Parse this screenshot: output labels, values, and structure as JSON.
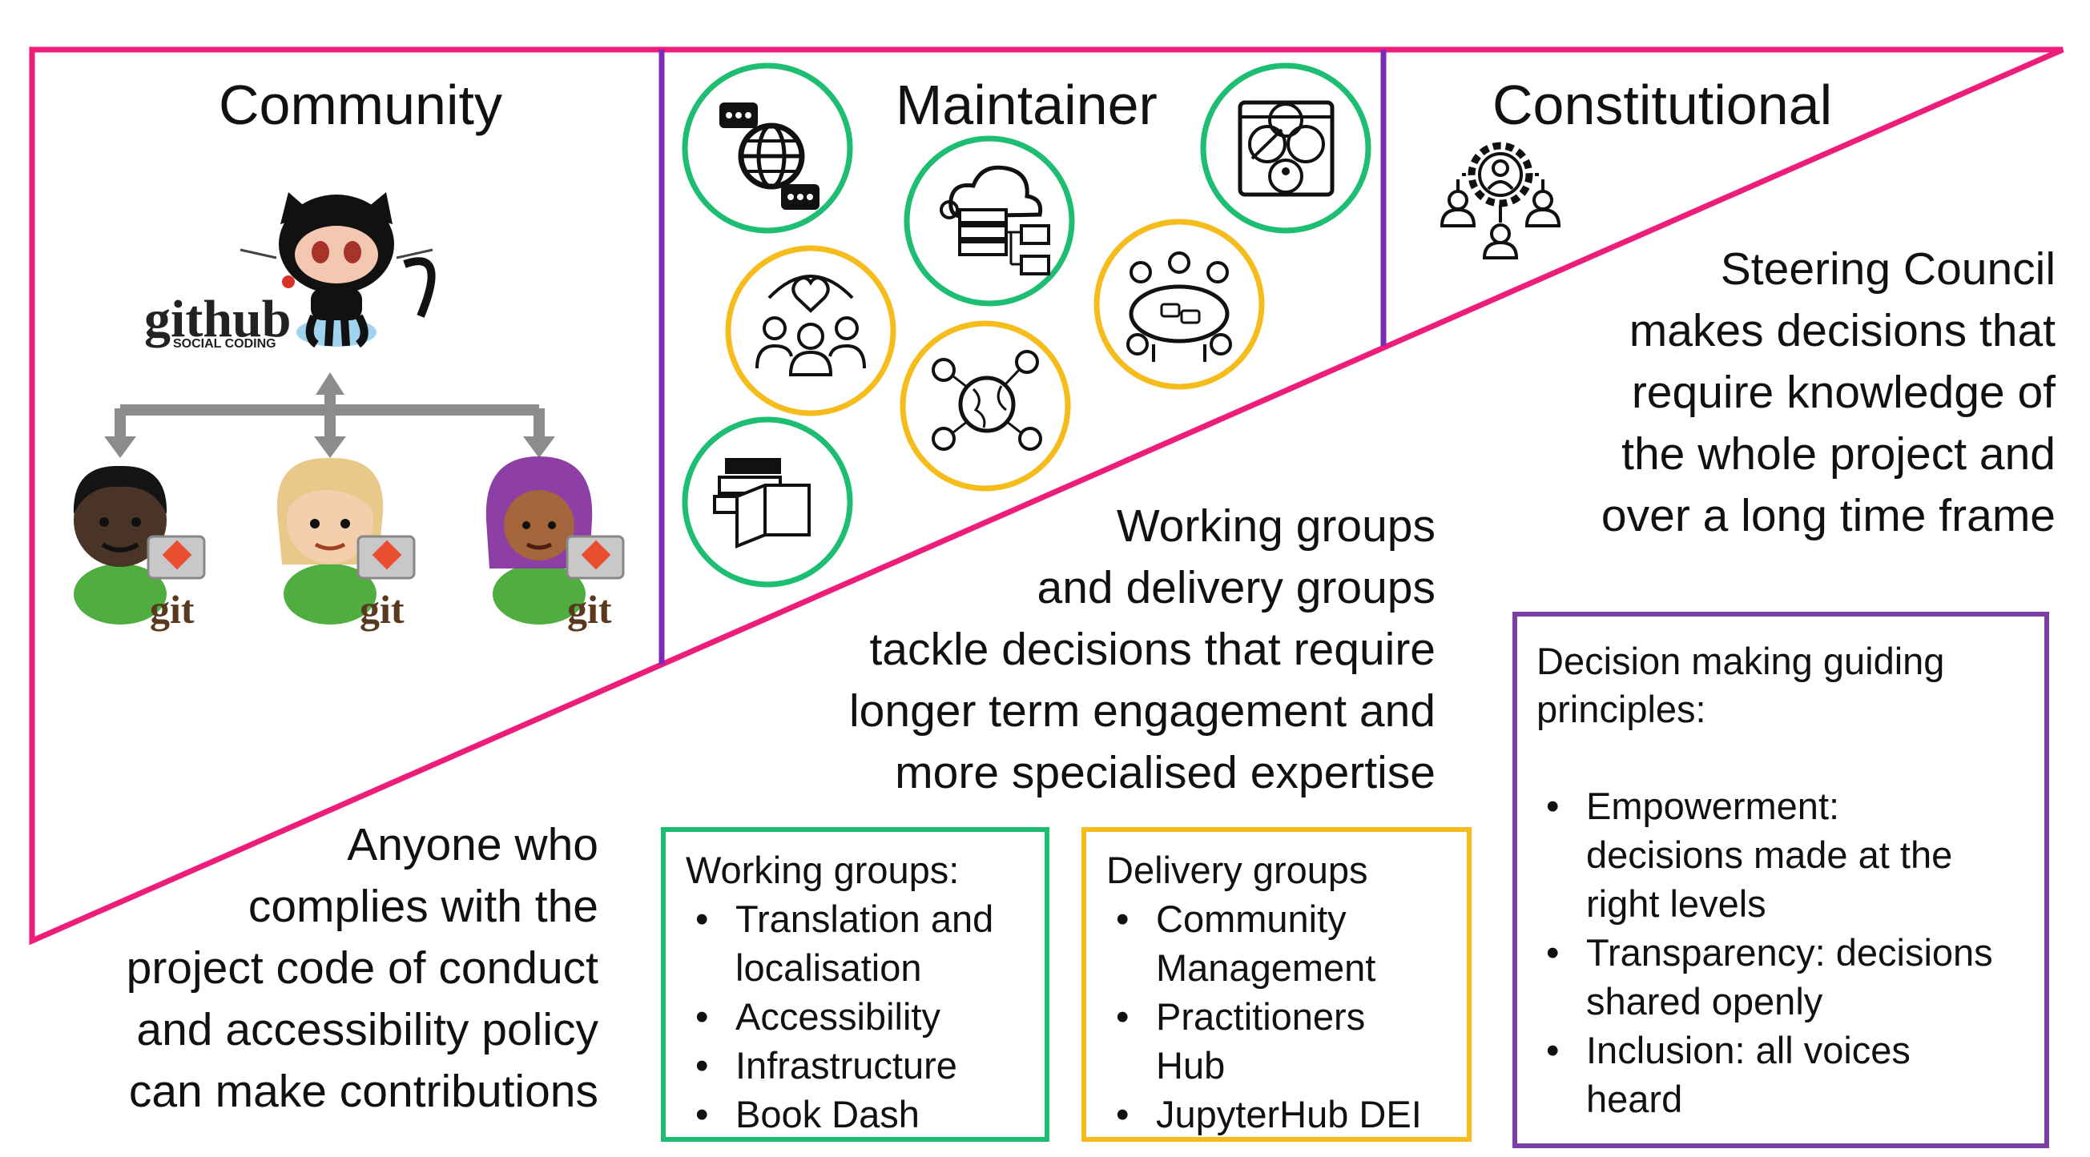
{
  "sections": {
    "community": {
      "title": "Community",
      "description_lines": [
        "Anyone who",
        "complies with the",
        "project code of conduct",
        "and accessibility policy",
        "can make contributions"
      ],
      "github_logo": {
        "word": "github",
        "tagline": "SOCIAL CODING"
      },
      "contributors": [
        {
          "name": "contributor-1",
          "badge": "git"
        },
        {
          "name": "contributor-2",
          "badge": "git"
        },
        {
          "name": "contributor-3",
          "badge": "git"
        }
      ]
    },
    "maintainer": {
      "title": "Maintainer",
      "description_lines": [
        "Working groups",
        "and delivery groups",
        "tackle decisions that require",
        "longer term engagement and",
        "more specialised expertise"
      ],
      "icons": [
        "chat-globe-icon",
        "cloud-server-icon",
        "accessibility-icon",
        "community-heart-icon",
        "meeting-table-icon",
        "global-network-icon",
        "books-icon"
      ]
    },
    "constitutional": {
      "title": "Constitutional",
      "description_lines": [
        "Steering Council",
        "makes decisions that",
        "require knowledge of",
        "the whole project and",
        "over a long time frame"
      ],
      "icon": "governance-gear-people-icon"
    }
  },
  "working_groups": {
    "title": "Working groups:",
    "items": [
      {
        "lines": [
          "Translation and",
          "localisation"
        ]
      },
      {
        "lines": [
          "Accessibility"
        ]
      },
      {
        "lines": [
          "Infrastructure"
        ]
      },
      {
        "lines": [
          "Book Dash"
        ]
      }
    ]
  },
  "delivery_groups": {
    "title": "Delivery groups",
    "items": [
      {
        "lines": [
          "Community",
          "Management"
        ]
      },
      {
        "lines": [
          "Practitioners",
          "Hub"
        ]
      },
      {
        "lines": [
          "JupyterHub DEI"
        ]
      }
    ]
  },
  "principles": {
    "title_lines": [
      "Decision making guiding",
      "principles:"
    ],
    "items": [
      {
        "lines": [
          "Empowerment:",
          "decisions made at the",
          "right levels"
        ]
      },
      {
        "lines": [
          "Transparency: decisions",
          "shared openly"
        ]
      },
      {
        "lines": [
          "Inclusion: all voices",
          "heard"
        ]
      }
    ]
  },
  "colors": {
    "triangle": "#EE1C7A",
    "divider": "#7B2BB5",
    "working_green": "#1DBE72",
    "delivery_yellow": "#F6BC1B",
    "principles_purple": "#7B3FA6",
    "arrow_gray": "#8C8C8C"
  }
}
